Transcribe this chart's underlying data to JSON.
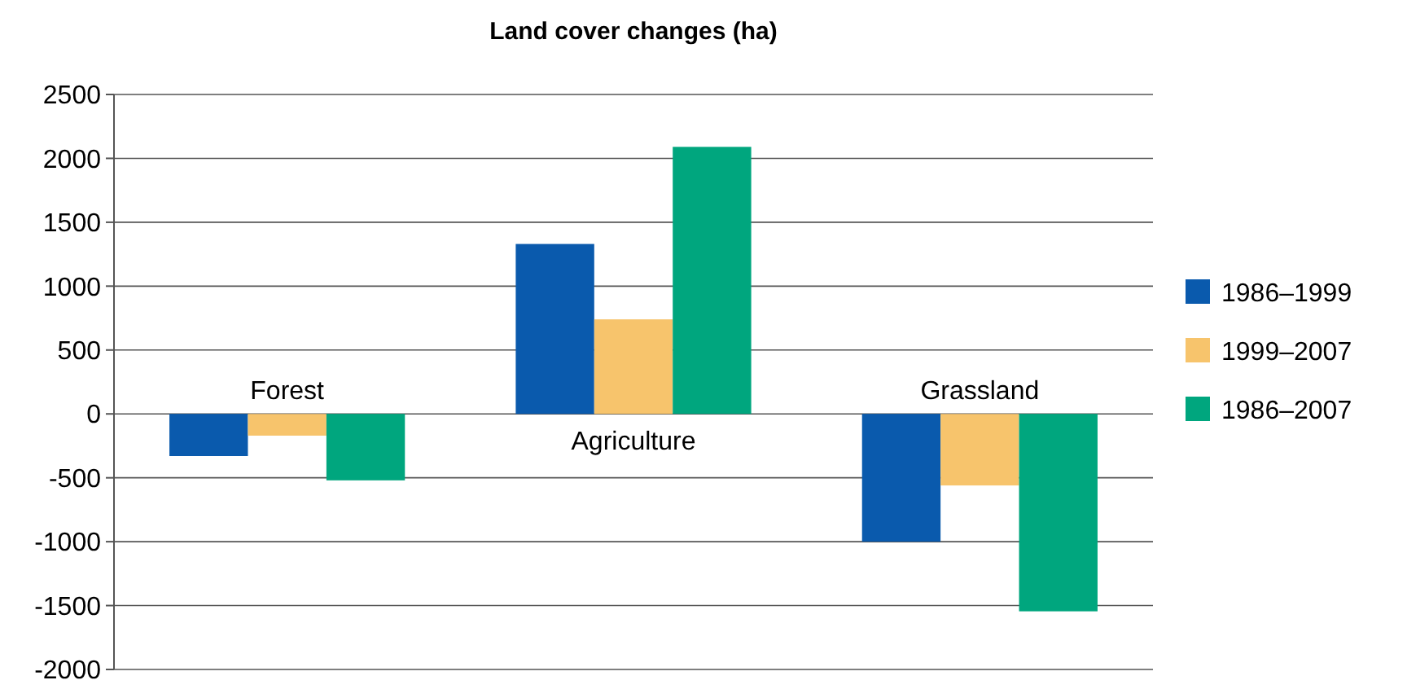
{
  "chart_data": {
    "type": "bar",
    "title": "Land cover changes (ha)",
    "categories": [
      "Forest",
      "Agriculture",
      "Grassland"
    ],
    "series": [
      {
        "name": "1986–1999",
        "color": "#0a5aad",
        "values": [
          -330,
          1330,
          -1000
        ]
      },
      {
        "name": "1999–2007",
        "color": "#f7c46c",
        "values": [
          -170,
          740,
          -560
        ]
      },
      {
        "name": "1986–2007",
        "color": "#00a67e",
        "values": [
          -520,
          2090,
          -1545
        ]
      }
    ],
    "ylim": [
      -2000,
      2500
    ],
    "yticks": [
      -2000,
      -1500,
      -1000,
      -500,
      0,
      500,
      1000,
      1500,
      2000,
      2500
    ],
    "grid": "y",
    "legend": "right"
  }
}
